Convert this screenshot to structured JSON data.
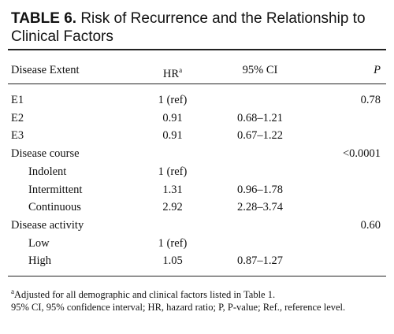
{
  "title": {
    "number": "TABLE 6.",
    "text": "Risk of Recurrence and the Relationship to Clinical Factors"
  },
  "table": {
    "header": {
      "label": "Disease Extent",
      "hr": "HR",
      "hr_note": "a",
      "ci": "95% CI",
      "p": "P"
    },
    "sections": [
      {
        "rows": [
          {
            "label": "E1",
            "hr": "1 (ref)",
            "p": "0.78"
          },
          {
            "label": "E2",
            "hr": "0.91",
            "ci": "0.68–1.21"
          },
          {
            "label": "E3",
            "hr": "0.91",
            "ci": "0.67–1.22"
          }
        ]
      },
      {
        "heading": "Disease course",
        "p": "<0.0001",
        "rows": [
          {
            "label": "Indolent",
            "hr": "1 (ref)"
          },
          {
            "label": "Intermittent",
            "hr": "1.31",
            "ci": "0.96–1.78"
          },
          {
            "label": "Continuous",
            "hr": "2.92",
            "ci": "2.28–3.74"
          }
        ]
      },
      {
        "heading": "Disease activity",
        "p": "0.60",
        "rows": [
          {
            "label": "Low",
            "hr": "1 (ref)"
          },
          {
            "label": "High",
            "hr": "1.05",
            "ci": "0.87–1.27"
          }
        ]
      }
    ]
  },
  "footnotes": [
    {
      "mark": "a",
      "text": "Adjusted for all demographic and clinical factors listed in Table 1."
    },
    {
      "text": "95% CI, 95% confidence interval; HR, hazard ratio; P, P-value; Ref., reference level."
    }
  ]
}
